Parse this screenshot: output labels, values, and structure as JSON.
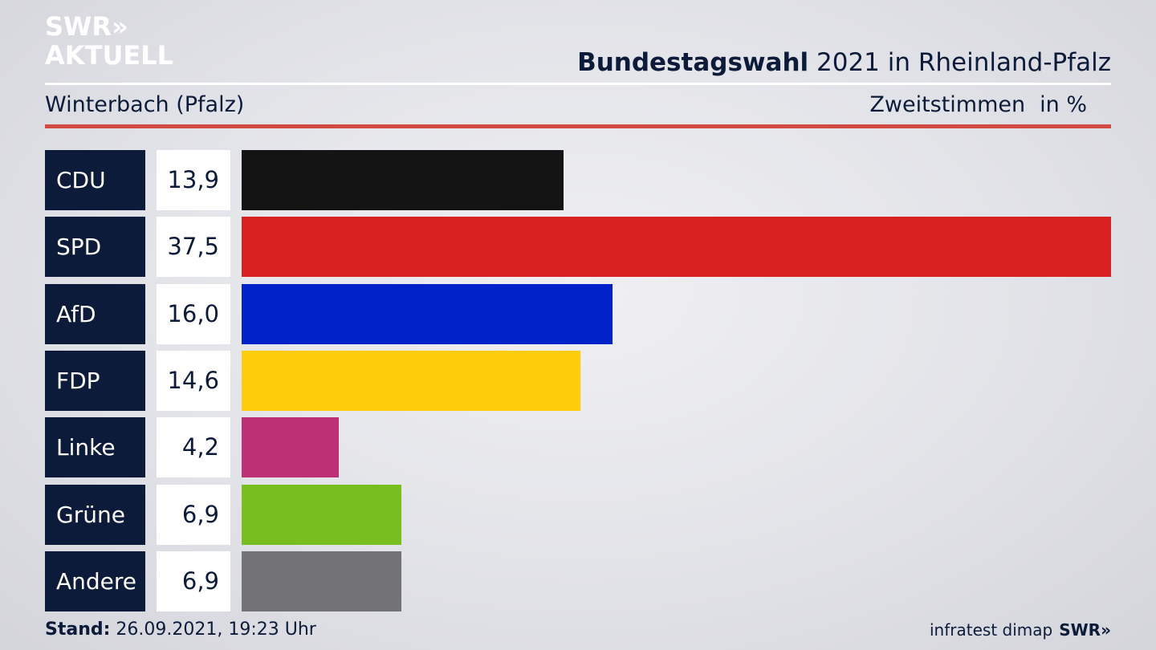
{
  "logo": {
    "line1": "SWR»",
    "line2": "AKTUELL"
  },
  "header": {
    "title_bold": "Bundestagswahl",
    "title_rest": " 2021 in Rheinland-Pfalz",
    "place": "Winterbach (Pfalz)",
    "metric": "Zweitstimmen",
    "unit": "in %"
  },
  "chart_data": {
    "type": "bar",
    "orientation": "horizontal",
    "title": "Bundestagswahl 2021 in Rheinland-Pfalz",
    "subtitle": "Winterbach (Pfalz)",
    "xlabel": "Zweitstimmen in %",
    "categories": [
      "CDU",
      "SPD",
      "AfD",
      "FDP",
      "Linke",
      "Grüne",
      "Andere"
    ],
    "values": [
      13.9,
      37.5,
      16.0,
      14.6,
      4.2,
      6.9,
      6.9
    ],
    "value_labels": [
      "13,9",
      "37,5",
      "16,0",
      "14,6",
      "4,2",
      "6,9",
      "6,9"
    ],
    "colors": [
      "#141414",
      "#d7201f",
      "#0022c8",
      "#fdcc0a",
      "#be3075",
      "#78be1e",
      "#737375"
    ],
    "xlim": [
      0,
      37.5
    ],
    "grid": false,
    "legend": "none"
  },
  "footer": {
    "stand_label": "Stand:",
    "stand_value": " 26.09.2021, 19:23 Uhr",
    "source": "infratest dimap",
    "brand": "SWR»"
  }
}
